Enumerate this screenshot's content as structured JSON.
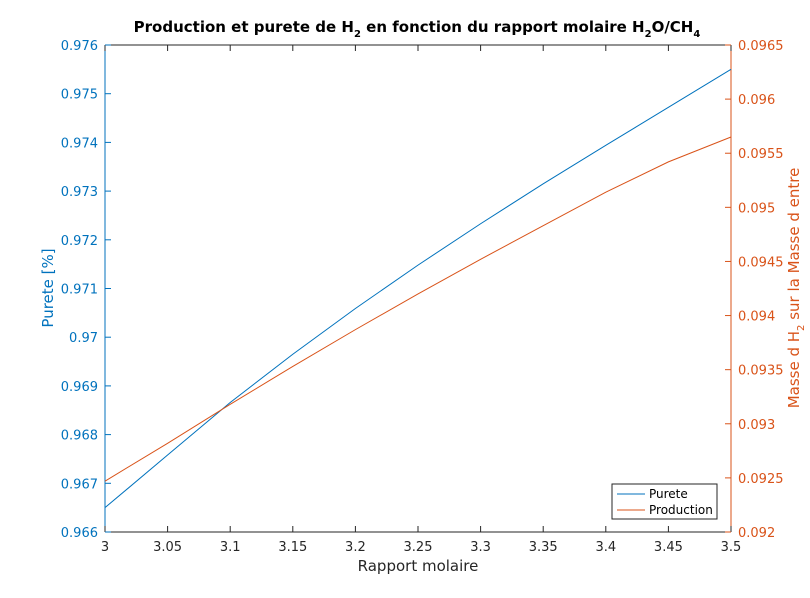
{
  "chart_data": {
    "type": "line",
    "title": "Production et purete de H_2 en fonction du rapport molaire H_2O/CH_4",
    "title_parts": {
      "p1": "Production et purete de H",
      "s1": "2",
      "p2": " en fonction du rapport molaire H",
      "s2": "2",
      "p3": "O/CH",
      "s3": "4"
    },
    "xlabel": "Rapport molaire",
    "ylabel_left": "Purete [%]",
    "ylabel_right": "Masse d H_2 sur la Masse d entre",
    "ylabel_right_parts": {
      "p1": "Masse d H",
      "s1": "2",
      "p2": " sur la Masse d entre"
    },
    "xlim": [
      3,
      3.5
    ],
    "ylim_left": [
      0.966,
      0.976
    ],
    "ylim_right": [
      0.092,
      0.0965
    ],
    "x_ticks": [
      "3",
      "3.05",
      "3.1",
      "3.15",
      "3.2",
      "3.25",
      "3.3",
      "3.35",
      "3.4",
      "3.45",
      "3.5"
    ],
    "y_left_ticks": [
      "0.966",
      "0.967",
      "0.968",
      "0.969",
      "0.97",
      "0.971",
      "0.972",
      "0.973",
      "0.974",
      "0.975",
      "0.976"
    ],
    "y_right_ticks": [
      "0.092",
      "0.0925",
      "0.093",
      "0.0935",
      "0.094",
      "0.0945",
      "0.095",
      "0.0955",
      "0.096",
      "0.0965"
    ],
    "grid": false,
    "legend_position": "bottom-right",
    "series": [
      {
        "name": "Purete",
        "axis": "left",
        "color": "#0072BD",
        "x": [
          3.0,
          3.05,
          3.1,
          3.15,
          3.2,
          3.25,
          3.3,
          3.35,
          3.4,
          3.45,
          3.5
        ],
        "y": [
          0.9665,
          0.96758,
          0.96866,
          0.96965,
          0.97059,
          0.97148,
          0.97233,
          0.97315,
          0.97394,
          0.97472,
          0.9755
        ]
      },
      {
        "name": "Production",
        "axis": "right",
        "color": "#D95319",
        "x": [
          3.0,
          3.05,
          3.1,
          3.15,
          3.2,
          3.25,
          3.3,
          3.35,
          3.4,
          3.45,
          3.5
        ],
        "y": [
          0.09247,
          0.09282,
          0.09318,
          0.09353,
          0.09387,
          0.0942,
          0.09452,
          0.09483,
          0.09514,
          0.09542,
          0.09565
        ]
      }
    ]
  }
}
